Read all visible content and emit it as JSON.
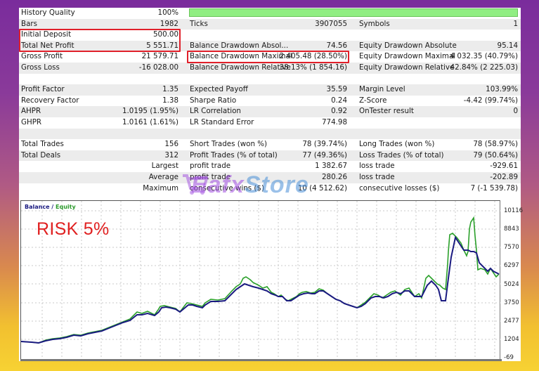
{
  "report": {
    "rows": [
      {
        "c1": {
          "label": "History Quality",
          "value": "100%"
        },
        "c2": {
          "label": "",
          "value": ""
        },
        "c3": {
          "label": "",
          "value": ""
        },
        "quality_bar": true
      },
      {
        "c1": {
          "label": "Bars",
          "value": "1982"
        },
        "c2": {
          "label": "Ticks",
          "value": "3907055"
        },
        "c3": {
          "label": "Symbols",
          "value": "1"
        }
      },
      {
        "c1": {
          "label": "Initial Deposit",
          "value": "500.00"
        },
        "c2": {
          "label": "",
          "value": ""
        },
        "c3": {
          "label": "",
          "value": ""
        }
      },
      {
        "c1": {
          "label": "Total Net Profit",
          "value": "5 551.71"
        },
        "c2": {
          "label": "Balance Drawdown Absol...",
          "value": "74.56"
        },
        "c3": {
          "label": "Equity Drawdown Absolute",
          "value": "95.14"
        }
      },
      {
        "c1": {
          "label": "Gross Profit",
          "value": "21 579.71"
        },
        "c2": {
          "label": "Balance Drawdown Maximal",
          "value": "2 405.48 (28.50%)"
        },
        "c3": {
          "label": "Equity Drawdown Maximal",
          "value": "4 032.35 (40.79%)"
        }
      },
      {
        "c1": {
          "label": "Gross Loss",
          "value": "-16 028.00"
        },
        "c2": {
          "label": "Balance Drawdown Relative",
          "value": "38.13% (1 854.16)"
        },
        "c3": {
          "label": "Equity Drawdown Relative",
          "value": "42.84% (2 225.03)"
        }
      },
      {
        "c1": {
          "label": "",
          "value": ""
        },
        "c2": {
          "label": "",
          "value": ""
        },
        "c3": {
          "label": "",
          "value": ""
        }
      },
      {
        "c1": {
          "label": "Profit Factor",
          "value": "1.35"
        },
        "c2": {
          "label": "Expected Payoff",
          "value": "35.59"
        },
        "c3": {
          "label": "Margin Level",
          "value": "103.99%"
        }
      },
      {
        "c1": {
          "label": "Recovery Factor",
          "value": "1.38"
        },
        "c2": {
          "label": "Sharpe Ratio",
          "value": "0.24"
        },
        "c3": {
          "label": "Z-Score",
          "value": "-4.42 (99.74%)"
        }
      },
      {
        "c1": {
          "label": "AHPR",
          "value": "1.0195 (1.95%)"
        },
        "c2": {
          "label": "LR Correlation",
          "value": "0.92"
        },
        "c3": {
          "label": "OnTester result",
          "value": "0"
        }
      },
      {
        "c1": {
          "label": "GHPR",
          "value": "1.0161 (1.61%)"
        },
        "c2": {
          "label": "LR Standard Error",
          "value": "774.98"
        },
        "c3": {
          "label": "",
          "value": ""
        }
      },
      {
        "c1": {
          "label": "",
          "value": ""
        },
        "c2": {
          "label": "",
          "value": ""
        },
        "c3": {
          "label": "",
          "value": ""
        }
      },
      {
        "c1": {
          "label": "Total Trades",
          "value": "156"
        },
        "c2": {
          "label": "Short Trades (won %)",
          "value": "78 (39.74%)"
        },
        "c3": {
          "label": "Long Trades (won %)",
          "value": "78 (58.97%)"
        }
      },
      {
        "c1": {
          "label": "Total Deals",
          "value": "312"
        },
        "c2": {
          "label": "Profit Trades (% of total)",
          "value": "77 (49.36%)"
        },
        "c3": {
          "label": "Loss Trades (% of total)",
          "value": "79 (50.64%)"
        }
      },
      {
        "c1": {
          "label": "",
          "value": "Largest"
        },
        "c2": {
          "label": "profit trade",
          "value": "1 382.67"
        },
        "c3": {
          "label": "loss trade",
          "value": "-929.61"
        }
      },
      {
        "c1": {
          "label": "",
          "value": "Average"
        },
        "c2": {
          "label": "profit trade",
          "value": "280.26"
        },
        "c3": {
          "label": "loss trade",
          "value": "-202.89"
        }
      },
      {
        "c1": {
          "label": "",
          "value": "Maximum"
        },
        "c2": {
          "label": "consecutive wins ($)",
          "value": "10 (4 512.62)"
        },
        "c3": {
          "label": "consecutive losses ($)",
          "value": "7 (-1 539.78)"
        }
      }
    ]
  },
  "chart": {
    "legend_balance": "Balance",
    "legend_sep": " / ",
    "legend_equity": "Equity",
    "annotation": "RISK 5%",
    "y_ticks": [
      "10116",
      "8843",
      "7570",
      "6297",
      "5024",
      "3750",
      "2477",
      "1204",
      "-69"
    ],
    "colors": {
      "balance": "#1a1a80",
      "equity": "#2aa02a",
      "annotation": "#e02020",
      "highlight": "#e0202a"
    }
  },
  "watermark": {
    "part1": "Eafx",
    "part2": "Store"
  },
  "chart_data": {
    "type": "line",
    "title": "Balance / Equity",
    "annotation": "RISK 5%",
    "xlabel": "",
    "ylabel": "",
    "ylim": [
      -69,
      10116
    ],
    "y_ticks": [
      10116,
      8843,
      7570,
      6297,
      5024,
      3750,
      2477,
      1204,
      -69
    ],
    "grid": true,
    "legend_position": "top-left",
    "x": [
      0,
      1,
      2,
      3,
      4,
      5,
      6,
      7,
      8,
      9,
      10,
      11,
      12,
      13,
      14,
      15,
      16,
      17,
      18,
      19,
      20,
      21,
      22,
      23,
      24,
      25,
      26,
      27,
      28,
      29,
      30
    ],
    "series": [
      {
        "name": "Balance",
        "values": [
          500,
          450,
          700,
          900,
          1000,
          1150,
          1600,
          2500,
          2400,
          3000,
          3100,
          3700,
          3600,
          3000,
          3400,
          3150,
          4000,
          3500,
          3800,
          3300,
          3100,
          3500,
          3700,
          3400,
          4200,
          4300,
          3100,
          8500,
          7200,
          6800,
          6200
        ]
      },
      {
        "name": "Equity",
        "values": [
          500,
          450,
          700,
          950,
          1000,
          1200,
          1700,
          2700,
          2400,
          3100,
          3200,
          3900,
          3700,
          3000,
          3500,
          3200,
          4100,
          3500,
          3900,
          3300,
          3100,
          3600,
          3800,
          4500,
          4300,
          3200,
          8700,
          8000,
          9800,
          6500,
          6300
        ]
      }
    ]
  }
}
